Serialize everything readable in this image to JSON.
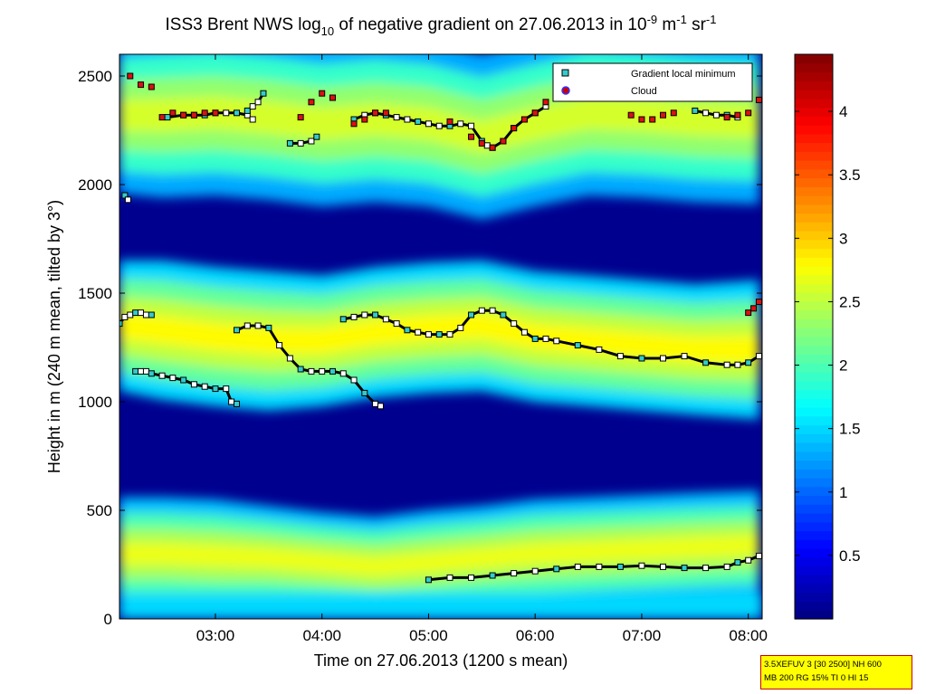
{
  "chart_data": {
    "type": "heatmap",
    "title": {
      "pre": "ISS3 Brent NWS log",
      "sub": "10",
      "mid": " of negative gradient on 27.06.2013 in 10",
      "sup1": "-9",
      "mid2": " m",
      "sup2": "-1",
      "mid3": " sr",
      "sup3": "-1"
    },
    "xlabel": "Time on 27.06.2013 (1200 s mean)",
    "ylabel": "Height in m (240 m mean, tilted by 3°)",
    "xlim": [
      2.1,
      8.13
    ],
    "ylim": [
      0,
      2600
    ],
    "x_ticks": [
      {
        "value": 3,
        "label": "03:00"
      },
      {
        "value": 4,
        "label": "04:00"
      },
      {
        "value": 5,
        "label": "05:00"
      },
      {
        "value": 6,
        "label": "06:00"
      },
      {
        "value": 7,
        "label": "07:00"
      },
      {
        "value": 8,
        "label": "08:00"
      }
    ],
    "y_ticks": [
      0,
      500,
      1000,
      1500,
      2000,
      2500
    ],
    "colorbar": {
      "range": [
        0,
        4.45
      ],
      "ticks": [
        0.5,
        1,
        1.5,
        2,
        2.5,
        3,
        3.5,
        4
      ],
      "colormap": "jet"
    },
    "legend": {
      "placement": "top-right",
      "entries": [
        {
          "label": "Gradient local minimum",
          "marker": "square",
          "color": "#33cccc"
        },
        {
          "label": "Cloud",
          "marker": "circle",
          "color": "#cc0000"
        }
      ]
    },
    "background_bands": [
      {
        "name": "lower band",
        "x": [
          2.1,
          2.5,
          3.0,
          3.5,
          4.0,
          4.5,
          5.0,
          5.5,
          6.0,
          6.5,
          7.0,
          7.5,
          8.1
        ],
        "center": [
          300,
          300,
          290,
          280,
          260,
          240,
          260,
          280,
          300,
          310,
          320,
          330,
          340
        ],
        "width": [
          260,
          260,
          260,
          240,
          230,
          230,
          240,
          240,
          250,
          250,
          250,
          250,
          250
        ],
        "value": 2.4
      },
      {
        "name": "middle band",
        "x": [
          2.1,
          2.5,
          3.0,
          3.5,
          4.0,
          4.5,
          5.0,
          5.5,
          6.0,
          6.5,
          7.0,
          7.5,
          8.1
        ],
        "center": [
          1350,
          1330,
          1300,
          1280,
          1280,
          1320,
          1340,
          1350,
          1300,
          1280,
          1260,
          1240,
          1240
        ],
        "width": [
          300,
          320,
          320,
          320,
          300,
          300,
          300,
          300,
          300,
          300,
          300,
          300,
          320
        ],
        "value": 2.5
      },
      {
        "name": "upper band",
        "x": [
          2.1,
          2.5,
          3.0,
          3.5,
          4.0,
          4.5,
          5.0,
          5.5,
          6.0,
          6.5,
          7.0,
          7.5,
          8.1
        ],
        "center": [
          2320,
          2320,
          2330,
          2310,
          2280,
          2300,
          2280,
          2220,
          2280,
          2330,
          2320,
          2300,
          2290
        ],
        "width": [
          360,
          380,
          380,
          380,
          380,
          380,
          380,
          380,
          380,
          380,
          380,
          380,
          380
        ],
        "value": 2.3
      }
    ],
    "gradient_minimum_series": [
      {
        "x": [
          2.1,
          2.15,
          2.2,
          2.25,
          2.3,
          2.35,
          2.4
        ],
        "y": [
          1360,
          1390,
          1400,
          1410,
          1410,
          1400,
          1400
        ]
      },
      {
        "x": [
          2.25,
          2.3,
          2.35,
          2.4,
          2.5,
          2.6,
          2.7,
          2.8,
          2.9,
          3.0,
          3.1,
          3.15,
          3.2
        ],
        "y": [
          1140,
          1140,
          1140,
          1130,
          1120,
          1110,
          1100,
          1080,
          1070,
          1060,
          1060,
          1000,
          990
        ]
      },
      {
        "x": [
          3.2,
          3.3,
          3.4,
          3.5,
          3.6,
          3.7,
          3.8,
          3.9,
          4.0,
          4.1,
          4.2,
          4.3,
          4.4,
          4.5,
          4.55
        ],
        "y": [
          1330,
          1350,
          1350,
          1340,
          1260,
          1200,
          1150,
          1140,
          1140,
          1140,
          1130,
          1100,
          1040,
          990,
          980
        ]
      },
      {
        "x": [
          4.2,
          4.3,
          4.4,
          4.5,
          4.6,
          4.7,
          4.8,
          4.9,
          5.0,
          5.1,
          5.2,
          5.3,
          5.4,
          5.5,
          5.6,
          5.7,
          5.8,
          5.9,
          6.0,
          6.1,
          6.2,
          6.4,
          6.6,
          6.8,
          7.0,
          7.2,
          7.4,
          7.6,
          7.8,
          7.9,
          8.0,
          8.1
        ],
        "y": [
          1380,
          1390,
          1400,
          1400,
          1380,
          1360,
          1330,
          1320,
          1310,
          1310,
          1310,
          1340,
          1400,
          1420,
          1420,
          1400,
          1360,
          1320,
          1290,
          1290,
          1280,
          1260,
          1240,
          1210,
          1200,
          1200,
          1210,
          1180,
          1170,
          1170,
          1180,
          1210
        ]
      },
      {
        "x": [
          5.0,
          5.2,
          5.4,
          5.6,
          5.8,
          6.0,
          6.2,
          6.4,
          6.6,
          6.8,
          7.0,
          7.2,
          7.4,
          7.6,
          7.8,
          7.9,
          8.0,
          8.1
        ],
        "y": [
          180,
          190,
          190,
          200,
          210,
          220,
          230,
          240,
          240,
          240,
          245,
          240,
          235,
          235,
          240,
          260,
          270,
          290
        ]
      },
      {
        "x": [
          2.55,
          2.7,
          2.8,
          2.9,
          3.0,
          3.1,
          3.2,
          3.3,
          3.35
        ],
        "y": [
          2310,
          2320,
          2320,
          2320,
          2330,
          2330,
          2330,
          2320,
          2300
        ]
      },
      {
        "x": [
          3.7,
          3.8,
          3.9,
          3.95
        ],
        "y": [
          2190,
          2190,
          2200,
          2220
        ]
      },
      {
        "x": [
          4.3,
          4.4,
          4.5,
          4.6,
          4.7,
          4.8,
          4.9,
          5.0,
          5.1,
          5.2,
          5.3,
          5.4,
          5.5,
          5.55,
          5.6,
          5.7,
          5.8,
          5.9,
          6.0,
          6.1
        ],
        "y": [
          2300,
          2320,
          2330,
          2320,
          2310,
          2300,
          2290,
          2280,
          2270,
          2270,
          2280,
          2270,
          2200,
          2180,
          2170,
          2200,
          2260,
          2300,
          2330,
          2360
        ]
      },
      {
        "x": [
          2.15,
          2.18
        ],
        "y": [
          1950,
          1930
        ]
      },
      {
        "x": [
          3.3,
          3.35,
          3.4,
          3.45
        ],
        "y": [
          2340,
          2360,
          2380,
          2420
        ]
      },
      {
        "x": [
          7.5,
          7.6,
          7.7,
          7.8,
          7.9
        ],
        "y": [
          2340,
          2330,
          2320,
          2320,
          2310
        ]
      }
    ],
    "cloud_series": [
      {
        "x": [
          2.2,
          2.3,
          2.4
        ],
        "y": [
          2500,
          2460,
          2450
        ]
      },
      {
        "x": [
          2.5,
          2.6,
          2.7,
          2.8,
          2.9,
          3.0
        ],
        "y": [
          2310,
          2330,
          2320,
          2320,
          2330,
          2330
        ]
      },
      {
        "x": [
          4.3,
          4.4,
          4.5,
          4.6
        ],
        "y": [
          2280,
          2300,
          2330,
          2330
        ]
      },
      {
        "x": [
          5.2,
          5.4,
          5.5,
          5.6,
          5.7,
          5.8,
          5.9,
          6.0,
          6.1
        ],
        "y": [
          2290,
          2220,
          2190,
          2170,
          2200,
          2260,
          2300,
          2330,
          2380
        ]
      },
      {
        "x": [
          6.9,
          7.0,
          7.1,
          7.2,
          7.3
        ],
        "y": [
          2320,
          2300,
          2300,
          2320,
          2330
        ]
      },
      {
        "x": [
          7.8,
          7.9,
          8.0,
          8.1
        ],
        "y": [
          2310,
          2320,
          2330,
          2390
        ]
      },
      {
        "x": [
          8.0,
          8.05,
          8.1
        ],
        "y": [
          1410,
          1430,
          1460
        ]
      },
      {
        "x": [
          3.8,
          3.9,
          4.0,
          4.1
        ],
        "y": [
          2310,
          2380,
          2420,
          2400
        ]
      }
    ]
  },
  "info_box": {
    "line1": "3.5XEFUV 3 [30 2500] NH 600",
    "line2": "MB 200 RG 15% TI 0 HI 15"
  }
}
